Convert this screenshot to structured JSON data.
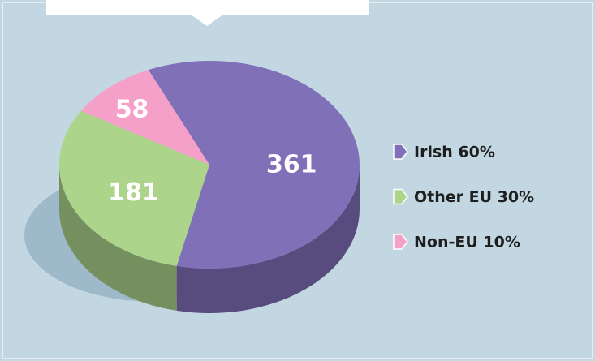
{
  "chart_data": {
    "type": "pie",
    "labels": [
      "Irish 60%",
      "Other EU 30%",
      "Non-EU 10%"
    ],
    "values": [
      361,
      181,
      58
    ],
    "colors": [
      "#8070b8",
      "#acd48a",
      "#f5a0c8"
    ]
  }
}
